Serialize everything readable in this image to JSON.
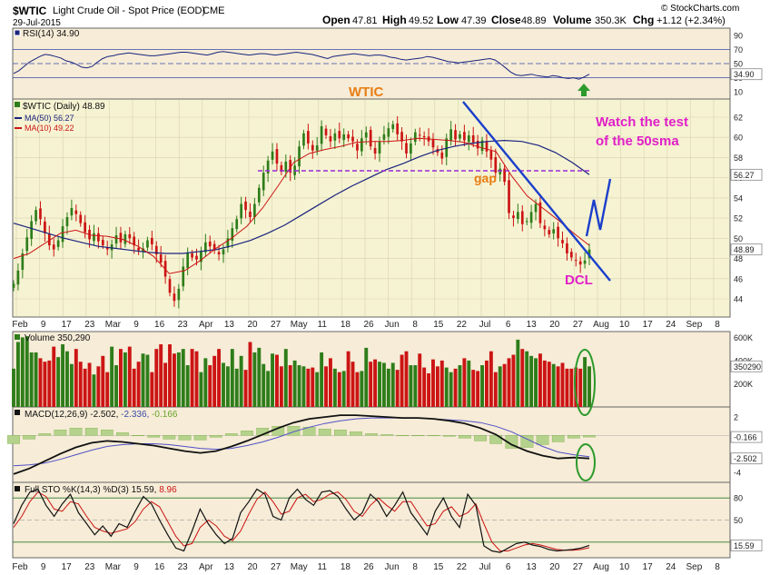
{
  "header": {
    "symbol": "$WTIC",
    "name": "Light Crude Oil - Spot Price (EOD)",
    "exchange": "CME",
    "date": "29-Jul-2015",
    "brand": "© StockCharts.com",
    "open_label": "Open",
    "open": "47.81",
    "high_label": "High",
    "high": "49.52",
    "low_label": "Low",
    "low": "47.39",
    "close_label": "Close",
    "close": "48.89",
    "volume_label": "Volume",
    "volume": "350.3K",
    "chg_label": "Chg",
    "chg": "+1.12 (+2.34%)"
  },
  "colors": {
    "up": "#2e7d1a",
    "down": "#cc1414",
    "ma50": "#1a237e",
    "ma10": "#cc1414",
    "panel_bg": "#f6f3d2",
    "sub_bg": "#f6ecd7",
    "annot_orange": "#e87d14",
    "annot_magenta": "#e020c8",
    "trend": "#1a3fcc",
    "green_circle": "#2c9a2c"
  },
  "annotations": {
    "wtic": "WTIC",
    "watch": "Watch the test",
    "watch2": "of the 50sma",
    "gap": "gap",
    "dcl": "DCL"
  },
  "chart_data": [
    {
      "type": "line",
      "panel": "rsi",
      "legend": "RSI(14) 34.90",
      "y_ticks": [
        10,
        30,
        50,
        70,
        90
      ],
      "current_label": "34.90",
      "ylim": [
        0,
        100
      ],
      "values": [
        36,
        40,
        46,
        52,
        56,
        60,
        63,
        62,
        60,
        58,
        54,
        52,
        49,
        45,
        44,
        46,
        52,
        57,
        60,
        61,
        63,
        64,
        65,
        64,
        63,
        62,
        61,
        61,
        62,
        63,
        64,
        65,
        66,
        66,
        65,
        64,
        63,
        62,
        64,
        66,
        67,
        66,
        65,
        64,
        63,
        62,
        63,
        64,
        64,
        63,
        62,
        63,
        64,
        65,
        66,
        65,
        64,
        63,
        61,
        59,
        57,
        60,
        61,
        62,
        63,
        64,
        63,
        62,
        61,
        62,
        62,
        61,
        59,
        58,
        56,
        55,
        56,
        57,
        58,
        60,
        59,
        57,
        55,
        53,
        52,
        51,
        52,
        53,
        54,
        55,
        56,
        57,
        55,
        50,
        44,
        38,
        34,
        33,
        34,
        35,
        33,
        32,
        31,
        33,
        32,
        30,
        29,
        30,
        28,
        31,
        35
      ]
    },
    {
      "type": "candlestick",
      "panel": "price",
      "title": "$WTIC (Daily) 48.89",
      "series": [
        {
          "name": "MA(50) 56.27",
          "current": "56.27"
        },
        {
          "name": "MA(10) 49.22"
        }
      ],
      "current_label": "48.89",
      "y_ticks": [
        44,
        46,
        48,
        50,
        52,
        54,
        56,
        58,
        60,
        62
      ],
      "ylim": [
        42.2,
        63.8
      ],
      "x_ticks": [
        "Feb",
        "9",
        "17",
        "23",
        "Mar",
        "9",
        "16",
        "23",
        "Apr",
        "13",
        "20",
        "27",
        "May",
        "11",
        "18",
        "26",
        "Jun",
        "8",
        "15",
        "22",
        "Jul",
        "6",
        "13",
        "20",
        "27",
        "Aug",
        "10",
        "17",
        "24",
        "Sep",
        "8"
      ],
      "close": [
        45.5,
        46.8,
        48.5,
        50.1,
        51.7,
        52.8,
        51.9,
        50.5,
        49.3,
        48.9,
        49.8,
        51.2,
        52.1,
        53.0,
        52.4,
        51.5,
        50.6,
        49.9,
        50.5,
        49.7,
        49.3,
        48.9,
        49.4,
        50.3,
        49.6,
        50.4,
        50.0,
        49.3,
        48.8,
        49.0,
        49.8,
        49.4,
        48.4,
        47.6,
        46.2,
        44.6,
        43.8,
        45.0,
        47.2,
        48.5,
        48.1,
        47.9,
        48.7,
        49.6,
        49.2,
        48.8,
        48.4,
        48.9,
        50.0,
        51.0,
        51.9,
        53.4,
        52.8,
        52.1,
        53.4,
        55.0,
        56.5,
        57.7,
        58.6,
        57.4,
        56.6,
        57.6,
        56.5,
        57.2,
        59.1,
        60.4,
        59.4,
        58.7,
        59.2,
        61.1,
        60.2,
        59.6,
        60.4,
        59.9,
        60.3,
        59.9,
        59.6,
        58.7,
        59.9,
        60.5,
        59.1,
        58.4,
        59.6,
        60.3,
        60.9,
        61.3,
        60.3,
        59.6,
        58.4,
        59.4,
        60.5,
        60.2,
        60.0,
        59.6,
        59.0,
        58.5,
        57.9,
        59.9,
        60.8,
        59.8,
        60.3,
        59.7,
        60.2,
        59.5,
        58.9,
        59.7,
        58.6,
        57.8,
        56.5,
        56.9,
        55.6,
        52.5,
        52.0,
        52.6,
        51.4,
        51.7,
        52.6,
        53.4,
        51.5,
        50.9,
        50.4,
        50.9,
        50.0,
        49.5,
        48.5,
        48.1,
        47.8,
        47.4,
        47.8,
        48.89
      ],
      "ma50": [
        51.5,
        51.0,
        50.5,
        50.0,
        49.6,
        49.2,
        49.0,
        48.8,
        48.6,
        48.5,
        48.5,
        48.7,
        48.9,
        49.3,
        49.8,
        50.5,
        51.3,
        52.3,
        53.3,
        54.3,
        55.2,
        56.0,
        56.8,
        57.4,
        58.1,
        58.7,
        59.1,
        59.4,
        59.6,
        59.7,
        59.6,
        59.2,
        58.5,
        57.5,
        56.3
      ],
      "ma10": [
        48.0,
        48.5,
        49.5,
        50.5,
        50.8,
        50.3,
        50.2,
        49.9,
        49.2,
        48.2,
        46.5,
        46.8,
        47.8,
        49.0,
        50.0,
        51.2,
        53.0,
        55.2,
        57.5,
        58.4,
        58.8,
        59.1,
        59.5,
        59.6,
        59.6,
        59.7,
        59.9,
        59.8,
        59.7,
        59.5,
        59.0,
        58.6,
        56.2,
        54.2,
        53.0,
        51.8,
        50.5,
        49.3
      ]
    },
    {
      "type": "bar",
      "panel": "volume",
      "legend": "Volume 350,290",
      "y_ticks": [
        "200K",
        "400K",
        "600K"
      ],
      "current_label": "350290",
      "ylim": [
        0,
        650000
      ],
      "values": [
        330000,
        560000,
        600000,
        610000,
        470000,
        470000,
        420000,
        390000,
        400000,
        520000,
        430000,
        540000,
        480000,
        370000,
        500000,
        390000,
        330000,
        380000,
        280000,
        350000,
        440000,
        300000,
        520000,
        360000,
        500000,
        470000,
        520000,
        330000,
        390000,
        460000,
        450000,
        300000,
        500000,
        540000,
        380000,
        540000,
        460000,
        470000,
        500000,
        360000,
        500000,
        480000,
        300000,
        420000,
        360000,
        440000,
        500000,
        380000,
        350000,
        500000,
        330000,
        440000,
        320000,
        560000,
        470000,
        510000,
        370000,
        310000,
        460000,
        450000,
        350000,
        500000,
        360000,
        400000,
        360000,
        350000,
        330000,
        340000,
        300000,
        470000,
        350000,
        420000,
        330000,
        300000,
        310000,
        480000,
        390000,
        300000,
        310000,
        510000,
        390000,
        410000,
        390000,
        380000,
        330000,
        380000,
        320000,
        450000,
        480000,
        360000,
        360000,
        460000,
        340000,
        290000,
        410000,
        350000,
        400000,
        340000,
        300000,
        330000,
        360000,
        420000,
        400000,
        320000,
        310000,
        360000,
        400000,
        480000,
        300000,
        350000,
        370000,
        420000,
        450000,
        580000,
        500000,
        480000,
        440000,
        420000,
        460000,
        400000,
        390000,
        370000,
        350000,
        380000,
        330000,
        330000,
        340000,
        330000,
        430000,
        350290
      ]
    },
    {
      "type": "line",
      "panel": "macd",
      "legend": "MACD(12,26,9) -2.502, -2.336, -0.166",
      "legend_parts": {
        "macd": "MACD(12,26,9) -2.502,",
        "signal": "-2.336,",
        "hist": "-0.166"
      },
      "y_ticks": [
        "2",
        "-4"
      ],
      "current_labels": [
        "-0.166",
        "-2.502"
      ],
      "ylim": [
        -5,
        3
      ],
      "macd": [
        -4.2,
        -3.6,
        -2.8,
        -2.0,
        -1.3,
        -0.8,
        -0.6,
        -0.7,
        -0.9,
        -1.1,
        -1.4,
        -1.7,
        -1.9,
        -1.7,
        -1.2,
        -0.6,
        0.1,
        0.8,
        1.4,
        1.8,
        2.0,
        2.2,
        2.2,
        2.1,
        2.0,
        1.9,
        1.9,
        1.8,
        1.6,
        1.3,
        0.8,
        0.1,
        -1.0,
        -1.7,
        -2.2,
        -2.5,
        -2.4,
        -2.5
      ],
      "signal": [
        -3.3,
        -3.2,
        -3.0,
        -2.6,
        -2.1,
        -1.6,
        -1.2,
        -1.0,
        -0.9,
        -0.9,
        -1.0,
        -1.2,
        -1.4,
        -1.5,
        -1.4,
        -1.1,
        -0.7,
        -0.2,
        0.4,
        0.9,
        1.3,
        1.6,
        1.8,
        1.9,
        1.9,
        1.9,
        1.9,
        1.8,
        1.7,
        1.6,
        1.4,
        1.0,
        0.4,
        -0.4,
        -1.2,
        -1.8,
        -2.1,
        -2.3
      ],
      "hist": [
        -0.9,
        -0.4,
        0.2,
        0.6,
        0.8,
        0.8,
        0.6,
        0.3,
        0.0,
        -0.2,
        -0.4,
        -0.5,
        -0.5,
        -0.2,
        0.2,
        0.5,
        0.8,
        1.0,
        1.0,
        0.9,
        0.7,
        0.6,
        0.4,
        0.2,
        0.1,
        0.0,
        0.0,
        0.0,
        -0.1,
        -0.3,
        -0.6,
        -0.9,
        -1.4,
        -1.3,
        -1.0,
        -0.7,
        -0.3,
        -0.17
      ]
    },
    {
      "type": "line",
      "panel": "sto",
      "legend": "Full STO %K(14,3) %D(3) 15.59, 8.96",
      "legend_parts": {
        "k": "Full STO %K(14,3) %D(3) 15.59,",
        "d": "8.96"
      },
      "y_ticks": [
        "20",
        "50",
        "80"
      ],
      "current_label": "15.59",
      "ylim": [
        0,
        100
      ],
      "k": [
        45,
        70,
        88,
        92,
        70,
        55,
        72,
        85,
        60,
        45,
        30,
        42,
        28,
        45,
        40,
        62,
        82,
        72,
        50,
        30,
        12,
        8,
        35,
        65,
        45,
        30,
        18,
        25,
        60,
        75,
        92,
        85,
        55,
        50,
        80,
        92,
        78,
        70,
        88,
        90,
        82,
        65,
        50,
        60,
        85,
        75,
        55,
        70,
        88,
        60,
        45,
        30,
        62,
        80,
        55,
        40,
        85,
        70,
        15,
        8,
        6,
        12,
        18,
        20,
        16,
        14,
        10,
        8,
        9,
        10,
        12,
        15.59
      ],
      "d": [
        40,
        55,
        75,
        88,
        82,
        65,
        62,
        75,
        72,
        55,
        40,
        35,
        32,
        35,
        38,
        48,
        65,
        75,
        68,
        48,
        28,
        15,
        18,
        40,
        50,
        42,
        28,
        22,
        35,
        58,
        78,
        88,
        75,
        58,
        62,
        80,
        85,
        75,
        78,
        85,
        88,
        78,
        62,
        55,
        70,
        80,
        70,
        62,
        75,
        75,
        58,
        42,
        45,
        62,
        68,
        55,
        60,
        72,
        45,
        20,
        8,
        8,
        12,
        16,
        18,
        16,
        13,
        10,
        9,
        9,
        10,
        12.5
      ]
    }
  ]
}
